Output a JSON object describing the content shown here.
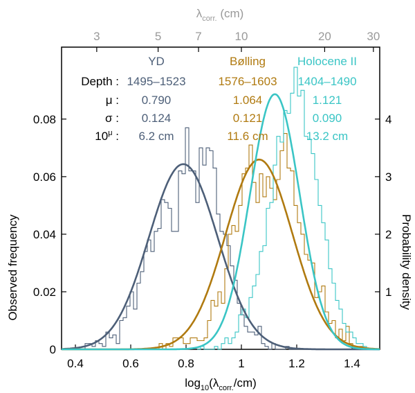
{
  "chart_data": {
    "type": "line",
    "title": "",
    "xlabel": "log10(λcorr./cm)",
    "xlabel_parts": {
      "prefix": "log",
      "sub1": "10",
      "mid": "(λ",
      "sub2": "corr.",
      "suffix": "/cm)"
    },
    "ylabel_left": "Observed frequency",
    "ylabel_right": "Probability density",
    "top_axis_label": "λcorr. (cm)",
    "top_axis_label_parts": {
      "main": "λ",
      "sub": "corr.",
      "suffix": " (cm)"
    },
    "xlim": [
      0.35,
      1.5
    ],
    "ylim_left": [
      0,
      0.105
    ],
    "ylim_right": [
      0,
      5.25
    ],
    "x_ticks": [
      0.4,
      0.6,
      0.8,
      1,
      1.2,
      1.4
    ],
    "x_tick_labels": [
      "0.4",
      "0.6",
      "0.8",
      "1",
      "1.2",
      "1.4"
    ],
    "y_left_ticks": [
      0,
      0.02,
      0.04,
      0.06,
      0.08
    ],
    "y_left_tick_labels": [
      "0",
      "0.02",
      "0.04",
      "0.06",
      "0.08"
    ],
    "y_right_ticks": [
      1,
      2,
      3,
      4
    ],
    "y_right_tick_labels": [
      "1",
      "2",
      "3",
      "4"
    ],
    "top_ticks": [
      3,
      5,
      7,
      10,
      20,
      30
    ],
    "top_tick_labels": [
      "3",
      "5",
      "7",
      "10",
      "20",
      "30"
    ],
    "grid": false,
    "stats_table": {
      "row_labels": [
        "Depth :",
        "μ :",
        "σ :",
        "10μ :"
      ],
      "row_label_power": {
        "base": "10",
        "exp": "μ",
        "suffix": " :"
      },
      "columns": [
        {
          "name": "YD",
          "color": "#4d5f78",
          "depth": "1495–1523",
          "mu": "0.790",
          "sigma": "0.124",
          "ten_mu": "6.2 cm"
        },
        {
          "name": "Bølling",
          "color": "#b07a10",
          "depth": "1576–1603",
          "mu": "1.064",
          "sigma": "0.121",
          "ten_mu": "11.6 cm"
        },
        {
          "name": "Holocene II",
          "color": "#3ac5c5",
          "depth": "1404–1490",
          "mu": "1.121",
          "sigma": "0.090",
          "ten_mu": "13.2 cm"
        }
      ]
    },
    "series": [
      {
        "name": "YD",
        "color": "#4d5f78",
        "normal_fit": {
          "mu": 0.79,
          "sigma": 0.124
        },
        "histogram": {
          "bin_start": 0.36,
          "bin_width": 0.0125,
          "values": [
            0,
            0,
            0,
            0,
            0,
            0,
            0.002,
            0.002,
            0.001,
            0.003,
            0.002,
            0.001,
            0.006,
            0.004,
            0.005,
            0.002,
            0.01,
            0.011,
            0.015,
            0.02,
            0.014,
            0.023,
            0.027,
            0.034,
            0.038,
            0.034,
            0.041,
            0.042,
            0.052,
            0.051,
            0.049,
            0.041,
            0.041,
            0.062,
            0.061,
            0.077,
            0.062,
            0.062,
            0.051,
            0.07,
            0.064,
            0.07,
            0.069,
            0.063,
            0.047,
            0.041,
            0.04,
            0.036,
            0.029,
            0.024,
            0.016,
            0.012,
            0.008,
            0.006,
            0.006,
            0.005,
            0.008,
            0.002,
            0.001,
            0,
            0.002,
            0,
            0,
            0,
            0.001,
            0,
            0,
            0
          ]
        }
      },
      {
        "name": "Bølling",
        "color": "#b07a10",
        "normal_fit": {
          "mu": 1.064,
          "sigma": 0.121
        },
        "histogram": {
          "bin_start": 0.69,
          "bin_width": 0.0125,
          "values": [
            0,
            0.002,
            0,
            0.002,
            0.001,
            0.004,
            0.004,
            0.004,
            0.002,
            0.002,
            0.004,
            0.004,
            0.003,
            0.003,
            0.004,
            0.01,
            0.017,
            0.015,
            0.02,
            0.016,
            0.028,
            0.04,
            0.043,
            0.041,
            0.05,
            0.061,
            0.063,
            0.071,
            0.058,
            0.051,
            0.061,
            0.053,
            0.06,
            0.056,
            0.052,
            0.059,
            0.069,
            0.075,
            0.063,
            0.062,
            0.05,
            0.044,
            0.04,
            0.033,
            0.031,
            0.03,
            0.018,
            0.02,
            0.022,
            0.013,
            0.009,
            0.01,
            0.004,
            0.007,
            0.003,
            0.008,
            0.002,
            0,
            0.001,
            0.001,
            0
          ]
        }
      },
      {
        "name": "Holocene II",
        "color": "#3ac5c5",
        "normal_fit": {
          "mu": 1.121,
          "sigma": 0.09
        },
        "histogram": {
          "bin_start": 0.84,
          "bin_width": 0.0125,
          "values": [
            0,
            0.001,
            0,
            0,
            0,
            0.001,
            0,
            0.002,
            0.004,
            0.002,
            0.004,
            0.006,
            0.012,
            0.014,
            0.011,
            0.018,
            0.022,
            0.026,
            0.034,
            0.036,
            0.049,
            0.051,
            0.064,
            0.074,
            0.072,
            0.083,
            0.082,
            0.089,
            0.098,
            0.088,
            0.09,
            0.074,
            0.073,
            0.068,
            0.059,
            0.05,
            0.044,
            0.038,
            0.028,
            0.023,
            0.017,
            0.014,
            0.009,
            0.006,
            0.006,
            0.004,
            0.002,
            0.002,
            0.001,
            0
          ]
        }
      }
    ]
  }
}
